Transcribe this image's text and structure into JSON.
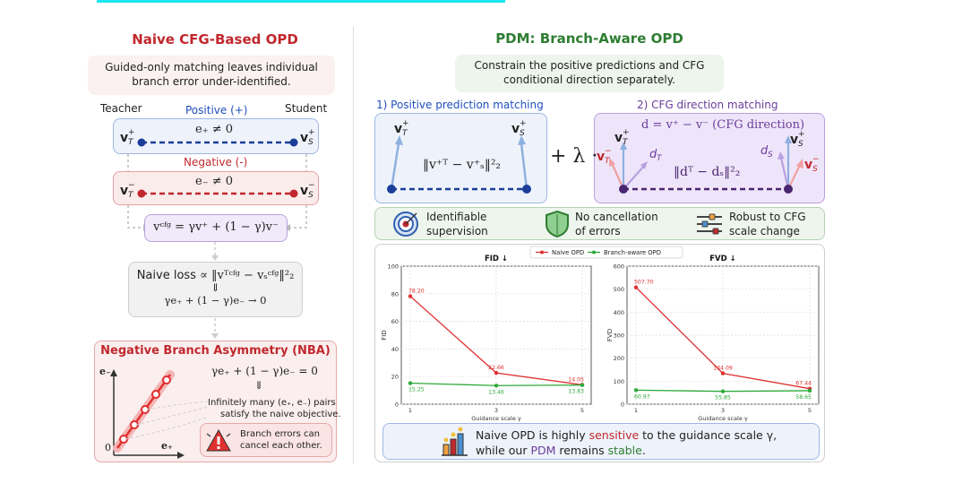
{
  "left": {
    "title": "Naive CFG-Based OPD",
    "subtitle_line1": "Guided-only matching leaves individual",
    "subtitle_line2": "branch error under-identified.",
    "teacher": "Teacher",
    "student": "Student",
    "positive_label": "Positive (+)",
    "negative_label": "Negative (-)",
    "vT_pos": "v",
    "e_pos": "e₊ ≠ 0",
    "e_neg": "e₋ ≠ 0",
    "vcfg_formula": "vᶜᶠᵍ = γv⁺ + (1 − γ)v⁻",
    "loss_label": "Naive loss",
    "loss_formula": "∝ ‖vᵀᶜᶠᵍ − vₛᶜᶠᵍ‖²₂",
    "loss_arrow": "⇓",
    "loss_result": "γe₊ + (1 − γ)e₋ → 0",
    "nba_title": "Negative Branch Asymmetry (NBA)",
    "nba_eq": "γe₊ + (1 − γ)e₋ = 0",
    "nba_arrow": "⇓",
    "nba_text1": "Infinitely many (e₊, e₋) pairs",
    "nba_text2": "satisfy the naive objective.",
    "warn_text1": "Branch errors can",
    "warn_text2": "cancel each other.",
    "axis_y": "e₋",
    "axis_x": "e₊",
    "axis_origin": "0"
  },
  "right": {
    "title": "PDM: Branch-Aware OPD",
    "subtitle_line1": "Constrain the positive predictions and CFG",
    "subtitle_line2": "conditional direction separately.",
    "pos_match_title": "1) Positive prediction matching",
    "pos_match_formula": "‖v⁺ᵀ − v⁺ₛ‖²₂",
    "plus_lambda": "+ λ ·",
    "dir_match_title": "2) CFG direction matching",
    "dir_def": "d = v⁺ − v⁻ (CFG direction)",
    "dir_formula": "‖dᵀ − dₛ‖²₂",
    "dT": "dT",
    "dS": "dS",
    "benefit1_line1": "Identifiable",
    "benefit1_line2": "supervision",
    "benefit2_line1": "No cancellation",
    "benefit2_line2": "of errors",
    "benefit3_line1": "Robust to CFG",
    "benefit3_line2": "scale change",
    "conclusion_line1_a": "Naive OPD is highly ",
    "conclusion_line1_b": "sensitive",
    "conclusion_line1_c": " to the guidance scale γ,",
    "conclusion_line2_a": "while our ",
    "conclusion_line2_b": "PDM",
    "conclusion_line2_c": " remains ",
    "conclusion_line2_d": "stable",
    "conclusion_line2_e": "."
  },
  "colors": {
    "red": "#c0282d",
    "green": "#2e7d32",
    "blue": "#1f4fbf",
    "purple": "#6a3d9a"
  },
  "chart_data": [
    {
      "type": "line",
      "title": "FID ↓",
      "xlabel": "Guidance scale γ",
      "ylabel": "FID",
      "x": [
        1,
        3,
        5
      ],
      "ylim": [
        0,
        100
      ],
      "yticks": [
        0,
        20,
        40,
        60,
        80,
        100
      ],
      "xticks": [
        1,
        3,
        5
      ],
      "series": [
        {
          "name": "Naive OPD",
          "color": "#e03030",
          "values": [
            78.2,
            22.66,
            14.05
          ],
          "labels": [
            "78.20",
            "22.66",
            "14.05"
          ]
        },
        {
          "name": "Branch-aware OPD",
          "color": "#2eaa3a",
          "values": [
            15.25,
            13.46,
            13.83
          ],
          "labels": [
            "15.25",
            "13.46",
            "13.83"
          ]
        }
      ],
      "grid": true,
      "legend": "top"
    },
    {
      "type": "line",
      "title": "FVD ↓",
      "xlabel": "Guidance scale γ",
      "ylabel": "FVD",
      "x": [
        1,
        3,
        5
      ],
      "ylim": [
        0,
        600
      ],
      "yticks": [
        0,
        100,
        200,
        300,
        400,
        500,
        600
      ],
      "xticks": [
        1,
        3,
        5
      ],
      "series": [
        {
          "name": "Naive OPD",
          "color": "#e03030",
          "values": [
            507.7,
            134.09,
            67.44
          ],
          "labels": [
            "507.70",
            "134.09",
            "67.44"
          ]
        },
        {
          "name": "Branch-aware OPD",
          "color": "#2eaa3a",
          "values": [
            60.97,
            55.85,
            58.65
          ],
          "labels": [
            "60.97",
            "55.85",
            "58.65"
          ]
        }
      ],
      "grid": true,
      "legend": "top"
    }
  ]
}
